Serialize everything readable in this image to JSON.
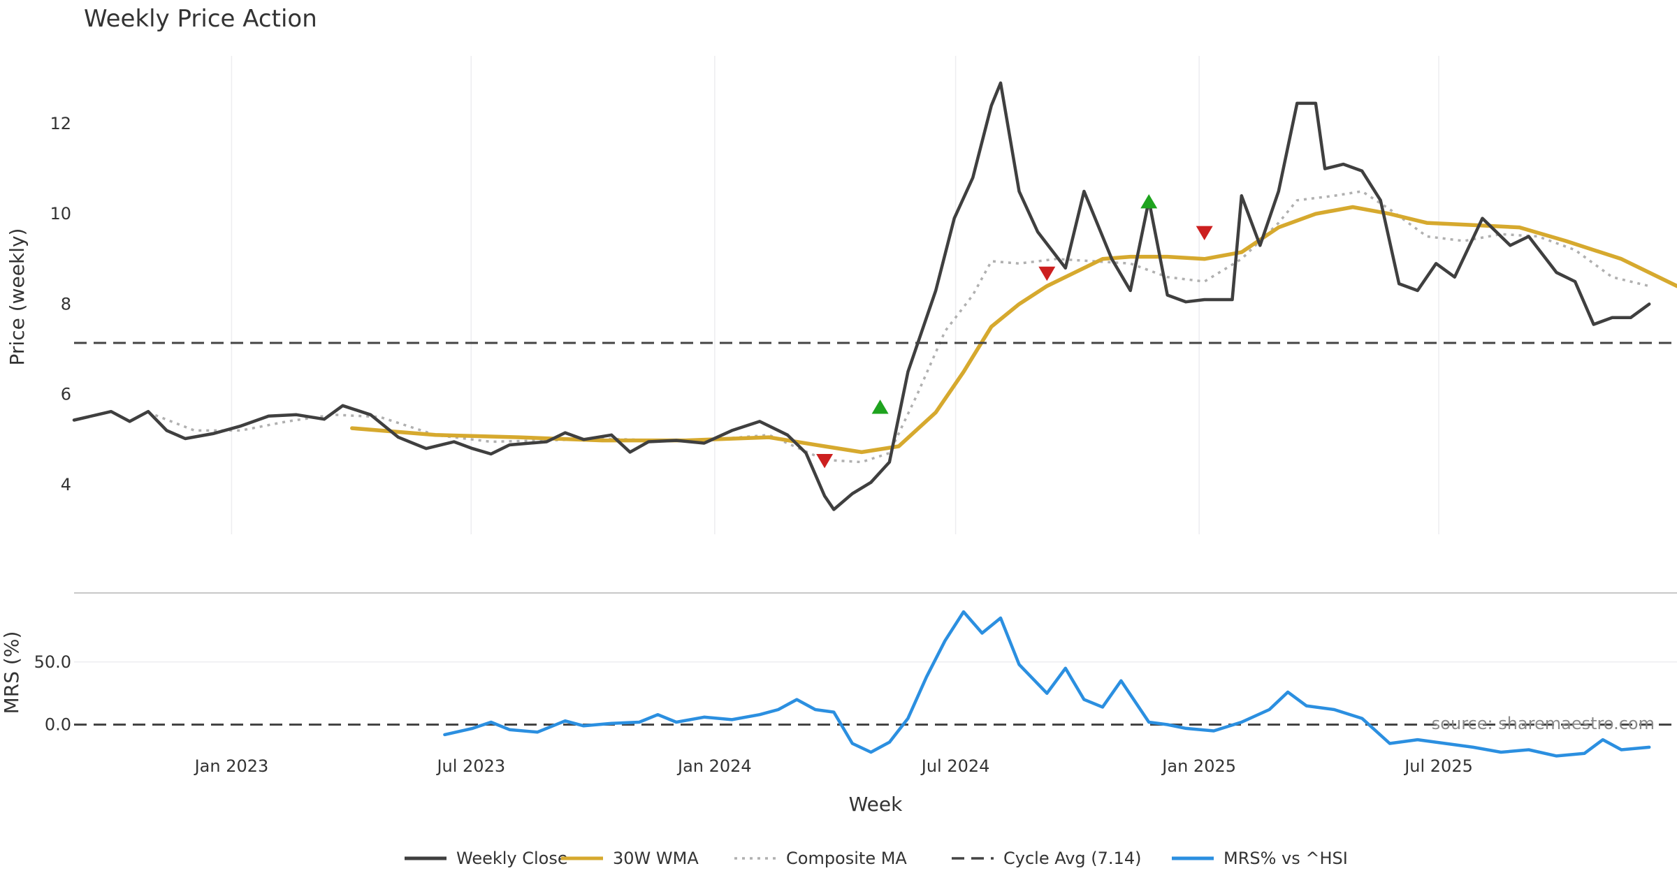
{
  "chart_data": {
    "type": "line",
    "title": "Weekly Price Action",
    "source": "source: sharemaestro.com",
    "xlabel": "Week",
    "x_ticks": [
      "Jan 2023",
      "Jul 2023",
      "Jan 2024",
      "Jul 2024",
      "Jan 2025",
      "Jul 2025"
    ],
    "x_tick_dates": [
      "2023-01-01",
      "2023-07-01",
      "2024-01-01",
      "2024-07-01",
      "2025-01-01",
      "2025-07-01"
    ],
    "x_range": [
      "2022-09-04",
      "2025-12-28"
    ],
    "price_panel": {
      "ylabel": "Price (weekly)",
      "ylim": [
        2.9,
        13.5
      ],
      "y_ticks": [
        "4",
        "6",
        "8",
        "10",
        "12"
      ],
      "y_tick_values": [
        4,
        6,
        8,
        10,
        12
      ],
      "cycle_avg": 7.14,
      "series": [
        {
          "name": "Weekly Close",
          "color": "#3f3f3f",
          "points": [
            [
              "2022-09-04",
              5.43
            ],
            [
              "2022-10-02",
              5.62
            ],
            [
              "2022-10-16",
              5.4
            ],
            [
              "2022-10-30",
              5.62
            ],
            [
              "2022-11-13",
              5.2
            ],
            [
              "2022-11-27",
              5.02
            ],
            [
              "2022-12-18",
              5.13
            ],
            [
              "2023-01-08",
              5.3
            ],
            [
              "2023-01-29",
              5.52
            ],
            [
              "2023-02-19",
              5.55
            ],
            [
              "2023-03-12",
              5.45
            ],
            [
              "2023-03-26",
              5.75
            ],
            [
              "2023-04-16",
              5.55
            ],
            [
              "2023-05-07",
              5.05
            ],
            [
              "2023-05-28",
              4.8
            ],
            [
              "2023-06-18",
              4.95
            ],
            [
              "2023-07-02",
              4.8
            ],
            [
              "2023-07-16",
              4.68
            ],
            [
              "2023-07-30",
              4.88
            ],
            [
              "2023-08-27",
              4.95
            ],
            [
              "2023-09-10",
              5.15
            ],
            [
              "2023-09-24",
              5.0
            ],
            [
              "2023-10-15",
              5.1
            ],
            [
              "2023-10-29",
              4.72
            ],
            [
              "2023-11-12",
              4.95
            ],
            [
              "2023-12-03",
              4.98
            ],
            [
              "2023-12-24",
              4.92
            ],
            [
              "2024-01-14",
              5.2
            ],
            [
              "2024-02-04",
              5.4
            ],
            [
              "2024-02-25",
              5.1
            ],
            [
              "2024-03-10",
              4.7
            ],
            [
              "2024-03-24",
              3.75
            ],
            [
              "2024-03-31",
              3.45
            ],
            [
              "2024-04-14",
              3.8
            ],
            [
              "2024-04-28",
              4.05
            ],
            [
              "2024-05-12",
              4.5
            ],
            [
              "2024-05-26",
              6.5
            ],
            [
              "2024-06-16",
              8.3
            ],
            [
              "2024-06-30",
              9.9
            ],
            [
              "2024-07-14",
              10.8
            ],
            [
              "2024-07-28",
              12.4
            ],
            [
              "2024-08-04",
              12.9
            ],
            [
              "2024-08-18",
              10.5
            ],
            [
              "2024-09-01",
              9.6
            ],
            [
              "2024-09-22",
              8.8
            ],
            [
              "2024-10-06",
              10.5
            ],
            [
              "2024-10-27",
              9.0
            ],
            [
              "2024-11-10",
              8.3
            ],
            [
              "2024-11-24",
              10.3
            ],
            [
              "2024-12-08",
              8.2
            ],
            [
              "2024-12-22",
              8.05
            ],
            [
              "2025-01-05",
              8.1
            ],
            [
              "2025-01-26",
              8.1
            ],
            [
              "2025-02-02",
              10.4
            ],
            [
              "2025-02-16",
              9.3
            ],
            [
              "2025-03-02",
              10.5
            ],
            [
              "2025-03-16",
              12.45
            ],
            [
              "2025-03-30",
              12.45
            ],
            [
              "2025-04-06",
              11.0
            ],
            [
              "2025-04-20",
              11.1
            ],
            [
              "2025-05-04",
              10.95
            ],
            [
              "2025-05-18",
              10.3
            ],
            [
              "2025-06-01",
              8.45
            ],
            [
              "2025-06-15",
              8.3
            ],
            [
              "2025-06-29",
              8.9
            ],
            [
              "2025-07-13",
              8.6
            ],
            [
              "2025-08-03",
              9.9
            ],
            [
              "2025-08-24",
              9.3
            ],
            [
              "2025-09-07",
              9.5
            ],
            [
              "2025-09-28",
              8.7
            ],
            [
              "2025-10-12",
              8.5
            ],
            [
              "2025-10-26",
              7.55
            ],
            [
              "2025-11-09",
              7.7
            ],
            [
              "2025-11-23",
              7.7
            ],
            [
              "2025-12-07",
              8.0
            ]
          ]
        },
        {
          "name": "30W WMA",
          "color": "#d6a92e",
          "points": [
            [
              "2023-04-02",
              5.25
            ],
            [
              "2023-06-04",
              5.1
            ],
            [
              "2023-08-06",
              5.05
            ],
            [
              "2023-10-08",
              4.98
            ],
            [
              "2023-12-10",
              4.98
            ],
            [
              "2024-02-11",
              5.05
            ],
            [
              "2024-03-24",
              4.85
            ],
            [
              "2024-04-21",
              4.72
            ],
            [
              "2024-05-19",
              4.85
            ],
            [
              "2024-06-16",
              5.6
            ],
            [
              "2024-07-07",
              6.5
            ],
            [
              "2024-07-28",
              7.5
            ],
            [
              "2024-08-18",
              8.0
            ],
            [
              "2024-09-08",
              8.4
            ],
            [
              "2024-09-29",
              8.7
            ],
            [
              "2024-10-20",
              9.0
            ],
            [
              "2024-11-10",
              9.05
            ],
            [
              "2024-12-08",
              9.05
            ],
            [
              "2025-01-05",
              9.0
            ],
            [
              "2025-02-02",
              9.15
            ],
            [
              "2025-03-02",
              9.7
            ],
            [
              "2025-03-30",
              10.0
            ],
            [
              "2025-04-27",
              10.15
            ],
            [
              "2025-05-25",
              10.0
            ],
            [
              "2025-06-22",
              9.8
            ],
            [
              "2025-07-27",
              9.75
            ],
            [
              "2025-08-31",
              9.7
            ],
            [
              "2025-10-05",
              9.4
            ],
            [
              "2025-11-16",
              9.0
            ],
            [
              "2025-12-28",
              8.4
            ]
          ]
        },
        {
          "name": "Composite MA",
          "color": "#b0b0b0",
          "points": [
            [
              "2022-10-30",
              5.6
            ],
            [
              "2022-12-04",
              5.2
            ],
            [
              "2023-01-08",
              5.2
            ],
            [
              "2023-02-12",
              5.4
            ],
            [
              "2023-03-19",
              5.55
            ],
            [
              "2023-04-23",
              5.5
            ],
            [
              "2023-06-04",
              5.1
            ],
            [
              "2023-07-16",
              4.95
            ],
            [
              "2023-08-27",
              4.98
            ],
            [
              "2023-10-08",
              5.02
            ],
            [
              "2023-11-19",
              4.98
            ],
            [
              "2023-12-31",
              5.0
            ],
            [
              "2024-02-11",
              5.1
            ],
            [
              "2024-03-24",
              4.55
            ],
            [
              "2024-04-21",
              4.5
            ],
            [
              "2024-05-12",
              4.7
            ],
            [
              "2024-06-02",
              6.0
            ],
            [
              "2024-06-23",
              7.4
            ],
            [
              "2024-07-14",
              8.2
            ],
            [
              "2024-07-28",
              8.95
            ],
            [
              "2024-08-18",
              8.9
            ],
            [
              "2024-09-15",
              9.0
            ],
            [
              "2024-10-13",
              8.95
            ],
            [
              "2024-11-10",
              8.9
            ],
            [
              "2024-12-08",
              8.6
            ],
            [
              "2025-01-05",
              8.5
            ],
            [
              "2025-02-02",
              9.0
            ],
            [
              "2025-03-02",
              9.8
            ],
            [
              "2025-03-16",
              10.3
            ],
            [
              "2025-04-13",
              10.4
            ],
            [
              "2025-05-04",
              10.5
            ],
            [
              "2025-05-25",
              10.1
            ],
            [
              "2025-06-22",
              9.5
            ],
            [
              "2025-07-20",
              9.4
            ],
            [
              "2025-08-17",
              9.55
            ],
            [
              "2025-09-14",
              9.5
            ],
            [
              "2025-10-12",
              9.2
            ],
            [
              "2025-11-09",
              8.6
            ],
            [
              "2025-12-07",
              8.4
            ]
          ]
        },
        {
          "name": "Cycle Avg (7.14)",
          "color": "#444444",
          "points": [
            [
              "2022-09-04",
              7.14
            ],
            [
              "2025-12-28",
              7.14
            ]
          ]
        }
      ],
      "markers": [
        {
          "kind": "down",
          "color": "#cc1f1f",
          "date": "2024-03-24",
          "value": 4.55
        },
        {
          "kind": "up",
          "color": "#1ea31e",
          "date": "2024-05-05",
          "value": 5.7
        },
        {
          "kind": "down",
          "color": "#cc1f1f",
          "date": "2024-09-08",
          "value": 8.7
        },
        {
          "kind": "up",
          "color": "#1ea31e",
          "date": "2024-11-24",
          "value": 10.25
        },
        {
          "kind": "down",
          "color": "#cc1f1f",
          "date": "2025-01-05",
          "value": 9.6
        }
      ]
    },
    "mrs_panel": {
      "ylabel": "MRS (%)",
      "ylim": [
        -32,
        100
      ],
      "y_ticks": [
        "0.0",
        "50.0"
      ],
      "y_tick_values": [
        0,
        50
      ],
      "zero_line": 0,
      "series": [
        {
          "name": "MRS% vs ^HSI",
          "color": "#2b8fe0",
          "points": [
            [
              "2023-06-11",
              -8
            ],
            [
              "2023-07-02",
              -3
            ],
            [
              "2023-07-16",
              2
            ],
            [
              "2023-07-30",
              -4
            ],
            [
              "2023-08-20",
              -6
            ],
            [
              "2023-09-10",
              3
            ],
            [
              "2023-09-24",
              -1
            ],
            [
              "2023-10-15",
              1
            ],
            [
              "2023-11-05",
              2
            ],
            [
              "2023-11-19",
              8
            ],
            [
              "2023-12-03",
              2
            ],
            [
              "2023-12-24",
              6
            ],
            [
              "2024-01-14",
              4
            ],
            [
              "2024-02-04",
              8
            ],
            [
              "2024-02-18",
              12
            ],
            [
              "2024-03-03",
              20
            ],
            [
              "2024-03-17",
              12
            ],
            [
              "2024-03-31",
              10
            ],
            [
              "2024-04-14",
              -15
            ],
            [
              "2024-04-28",
              -22
            ],
            [
              "2024-05-12",
              -14
            ],
            [
              "2024-05-26",
              5
            ],
            [
              "2024-06-09",
              38
            ],
            [
              "2024-06-23",
              67
            ],
            [
              "2024-07-07",
              90
            ],
            [
              "2024-07-21",
              73
            ],
            [
              "2024-08-04",
              85
            ],
            [
              "2024-08-18",
              48
            ],
            [
              "2024-09-08",
              25
            ],
            [
              "2024-09-22",
              45
            ],
            [
              "2024-10-06",
              20
            ],
            [
              "2024-10-20",
              14
            ],
            [
              "2024-11-03",
              35
            ],
            [
              "2024-11-24",
              2
            ],
            [
              "2024-12-08",
              0
            ],
            [
              "2024-12-22",
              -3
            ],
            [
              "2025-01-12",
              -5
            ],
            [
              "2025-02-02",
              2
            ],
            [
              "2025-02-23",
              12
            ],
            [
              "2025-03-09",
              26
            ],
            [
              "2025-03-23",
              15
            ],
            [
              "2025-04-13",
              12
            ],
            [
              "2025-05-04",
              5
            ],
            [
              "2025-05-25",
              -15
            ],
            [
              "2025-06-15",
              -12
            ],
            [
              "2025-07-06",
              -15
            ],
            [
              "2025-07-27",
              -18
            ],
            [
              "2025-08-17",
              -22
            ],
            [
              "2025-09-07",
              -20
            ],
            [
              "2025-09-28",
              -25
            ],
            [
              "2025-10-19",
              -23
            ],
            [
              "2025-11-02",
              -12
            ],
            [
              "2025-11-16",
              -20
            ],
            [
              "2025-12-07",
              -18
            ]
          ]
        },
        {
          "name": "Zero line",
          "color": "#444444",
          "points": [
            [
              "2022-09-04",
              0
            ],
            [
              "2025-12-28",
              0
            ]
          ]
        }
      ]
    },
    "legend": {
      "placement": "bottom-center",
      "entries": [
        {
          "label": "Weekly Close",
          "style": "solid",
          "color": "#3f3f3f"
        },
        {
          "label": "30W WMA",
          "style": "solid",
          "color": "#d6a92e"
        },
        {
          "label": "Composite MA",
          "style": "dotted",
          "color": "#b0b0b0"
        },
        {
          "label": "Cycle Avg (7.14)",
          "style": "dashed",
          "color": "#444444"
        },
        {
          "label": "MRS% vs ^HSI",
          "style": "solid",
          "color": "#2b8fe0"
        }
      ]
    },
    "grid": true
  }
}
